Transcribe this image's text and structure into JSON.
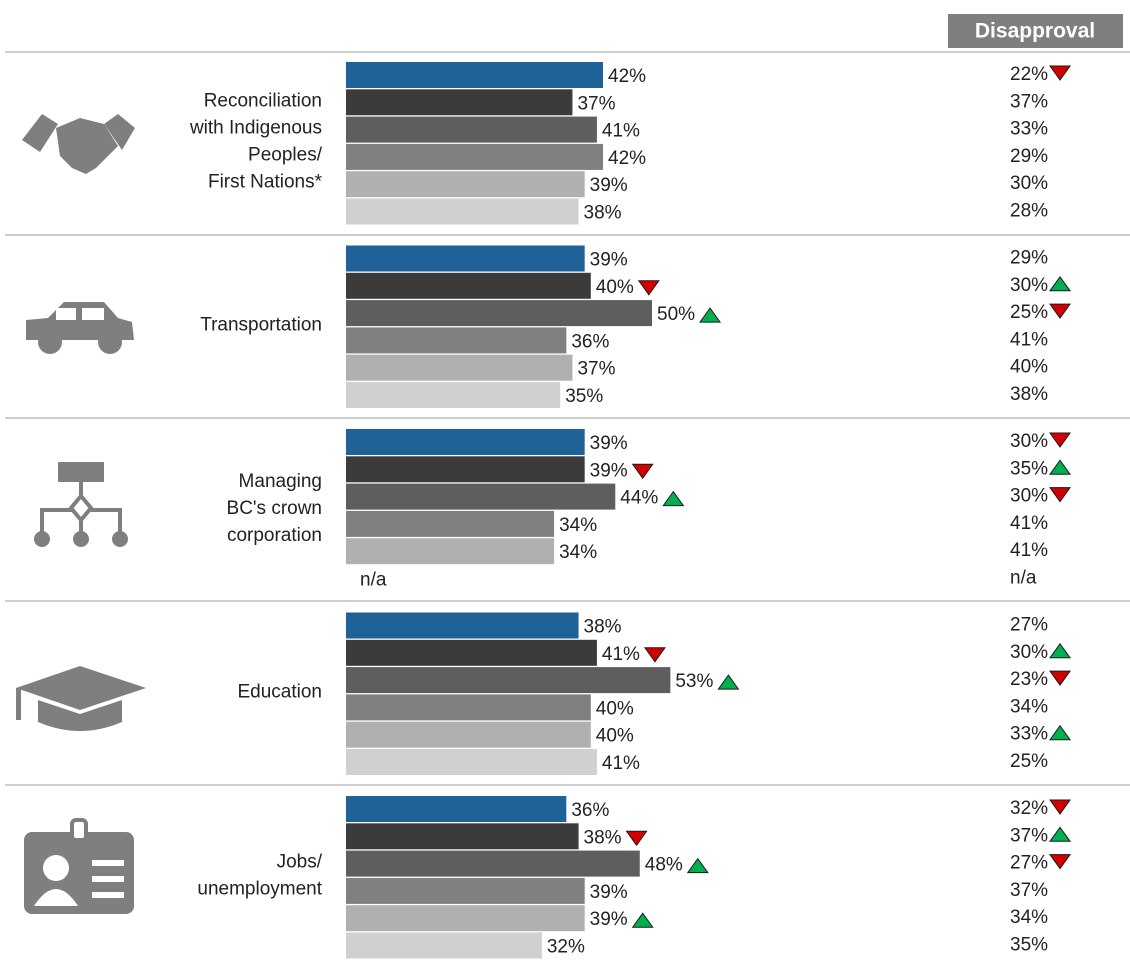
{
  "chart_data": {
    "type": "bar",
    "disapproval_title": "Disapproval",
    "categories": [
      [
        "Reconciliation",
        "with Indigenous",
        "Peoples/",
        "First Nations*"
      ],
      [
        "Transportation"
      ],
      [
        "Managing",
        "BC's crown",
        "corporation"
      ],
      [
        "Education"
      ],
      [
        "Jobs/",
        "unemployment"
      ]
    ],
    "series": [
      {
        "color": "#1f6297",
        "values": [
          42,
          39,
          39,
          38,
          36
        ],
        "value_labels": [
          "42%",
          "39%",
          "39%",
          "38%",
          "36%"
        ],
        "changes": [
          null,
          null,
          null,
          null,
          null
        ],
        "disapproval": [
          22,
          29,
          30,
          27,
          32
        ],
        "disapproval_labels": [
          "22%",
          "29%",
          "30%",
          "27%",
          "32%"
        ],
        "disapproval_changes": [
          "down",
          null,
          "down",
          null,
          "down"
        ]
      },
      {
        "color": "#3b3b3b",
        "values": [
          37,
          40,
          39,
          41,
          38
        ],
        "value_labels": [
          "37%",
          "40%",
          "39%",
          "41%",
          "38%"
        ],
        "changes": [
          null,
          "down",
          "down",
          "down",
          "down"
        ],
        "disapproval": [
          37,
          30,
          35,
          30,
          37
        ],
        "disapproval_labels": [
          "37%",
          "30%",
          "35%",
          "30%",
          "37%"
        ],
        "disapproval_changes": [
          null,
          "up",
          "up",
          "up",
          "up"
        ]
      },
      {
        "color": "#5e5e5e",
        "values": [
          41,
          50,
          44,
          53,
          48
        ],
        "value_labels": [
          "41%",
          "50%",
          "44%",
          "53%",
          "48%"
        ],
        "changes": [
          null,
          "up",
          "up",
          "up",
          "up"
        ],
        "disapproval": [
          33,
          25,
          30,
          23,
          27
        ],
        "disapproval_labels": [
          "33%",
          "25%",
          "30%",
          "23%",
          "27%"
        ],
        "disapproval_changes": [
          null,
          "down",
          "down",
          "down",
          "down"
        ]
      },
      {
        "color": "#808080",
        "values": [
          42,
          36,
          34,
          40,
          39
        ],
        "value_labels": [
          "42%",
          "36%",
          "34%",
          "40%",
          "39%"
        ],
        "changes": [
          null,
          null,
          null,
          null,
          null
        ],
        "disapproval": [
          29,
          41,
          41,
          34,
          37
        ],
        "disapproval_labels": [
          "29%",
          "41%",
          "41%",
          "34%",
          "37%"
        ],
        "disapproval_changes": [
          null,
          null,
          null,
          null,
          null
        ]
      },
      {
        "color": "#b0b0b0",
        "values": [
          39,
          37,
          34,
          40,
          39
        ],
        "value_labels": [
          "39%",
          "37%",
          "34%",
          "40%",
          "39%"
        ],
        "changes": [
          null,
          null,
          null,
          null,
          "up"
        ],
        "disapproval": [
          30,
          40,
          41,
          33,
          34
        ],
        "disapproval_labels": [
          "30%",
          "40%",
          "41%",
          "33%",
          "34%"
        ],
        "disapproval_changes": [
          null,
          null,
          null,
          "up",
          null
        ]
      },
      {
        "color": "#d0d0d0",
        "values": [
          38,
          35,
          null,
          41,
          32
        ],
        "value_labels": [
          "38%",
          "35%",
          "n/a",
          "41%",
          "32%"
        ],
        "changes": [
          null,
          null,
          null,
          null,
          null
        ],
        "disapproval": [
          28,
          38,
          null,
          25,
          35
        ],
        "disapproval_labels": [
          "28%",
          "38%",
          "n/a",
          "25%",
          "35%"
        ],
        "disapproval_changes": [
          null,
          null,
          null,
          null,
          null
        ]
      }
    ]
  }
}
